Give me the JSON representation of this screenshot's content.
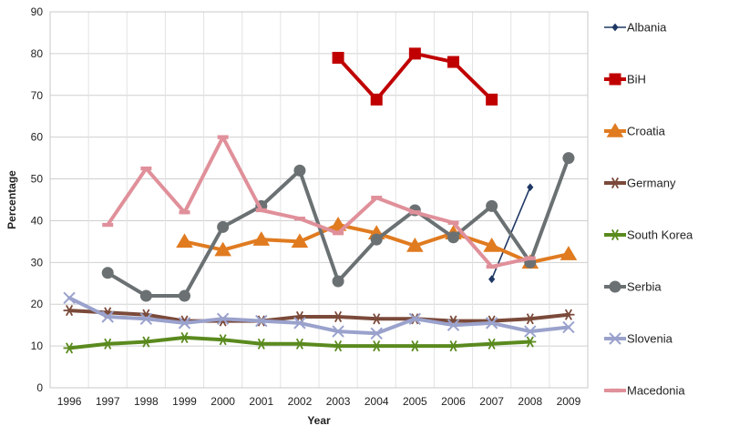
{
  "chart_data": {
    "type": "line",
    "title": "",
    "xlabel": "Year",
    "ylabel": "Percentage",
    "ylim": [
      0,
      90
    ],
    "yticks": [
      0,
      10,
      20,
      30,
      40,
      50,
      60,
      70,
      80,
      90
    ],
    "grid": true,
    "legend": "right",
    "categories": [
      "1996",
      "1997",
      "1998",
      "1999",
      "2000",
      "2001",
      "2002",
      "2003",
      "2004",
      "2005",
      "2006",
      "2007",
      "2008",
      "2009"
    ],
    "series": [
      {
        "name": "Albania",
        "color": "#1f3864",
        "marker": "diamond",
        "values": [
          null,
          null,
          null,
          null,
          null,
          null,
          null,
          null,
          null,
          null,
          null,
          26,
          48,
          null
        ]
      },
      {
        "name": "BiH",
        "color": "#c00000",
        "marker": "square",
        "values": [
          null,
          null,
          null,
          null,
          null,
          null,
          null,
          79,
          69,
          80,
          78,
          69,
          null,
          null
        ]
      },
      {
        "name": "Croatia",
        "color": "#e07b20",
        "marker": "triangle",
        "values": [
          null,
          null,
          null,
          35,
          33,
          35.5,
          35,
          39,
          37,
          34,
          37,
          34,
          30,
          32
        ]
      },
      {
        "name": "Germany",
        "color": "#7b4a3a",
        "marker": "star",
        "values": [
          18.5,
          18,
          17.5,
          16,
          16,
          16,
          17,
          17,
          16.5,
          16.5,
          16,
          16,
          16.5,
          17.5
        ]
      },
      {
        "name": "South Korea",
        "color": "#5a8a1e",
        "marker": "star",
        "values": [
          9.5,
          10.5,
          11,
          12,
          11.5,
          10.5,
          10.5,
          10,
          10,
          10,
          10,
          10.5,
          11,
          null
        ]
      },
      {
        "name": "Serbia",
        "color": "#6b7173",
        "marker": "circle",
        "values": [
          null,
          27.5,
          22,
          22,
          38.5,
          43.5,
          52,
          25.5,
          35.5,
          42.5,
          36,
          43.5,
          30,
          55
        ]
      },
      {
        "name": "Slovenia",
        "color": "#9aa2cc",
        "marker": "cross",
        "values": [
          21.5,
          17,
          16.5,
          15.5,
          16.5,
          16,
          15.5,
          13.5,
          13,
          16.5,
          15,
          15.5,
          13.5,
          14.5
        ]
      },
      {
        "name": "Macedonia",
        "color": "#e0909a",
        "marker": "dash",
        "values": [
          null,
          39,
          52.5,
          42,
          60,
          42.5,
          40.5,
          37,
          45.5,
          42,
          39.5,
          29,
          31,
          null
        ]
      }
    ]
  }
}
